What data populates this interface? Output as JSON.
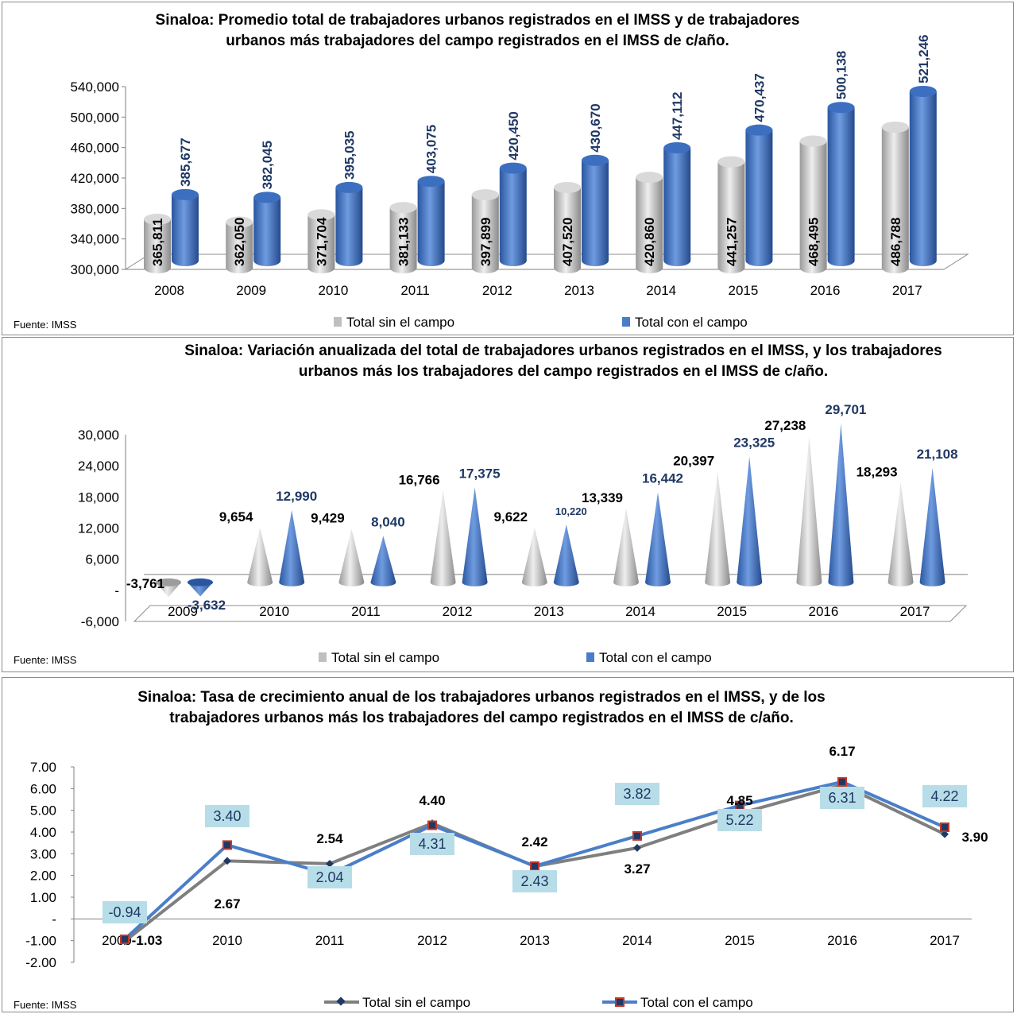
{
  "chart_data": [
    {
      "type": "bar",
      "title_lines": [
        "Sinaloa: Promedio total de trabajadores urbanos registrados en el IMSS y de trabajadores",
        "urbanos más trabajadores del campo registrados en el IMSS de c/año."
      ],
      "categories": [
        "2008",
        "2009",
        "2010",
        "2011",
        "2012",
        "2013",
        "2014",
        "2015",
        "2016",
        "2017"
      ],
      "series": [
        {
          "name": "Total sin el campo",
          "values": [
            365811,
            362050,
            371704,
            381133,
            397899,
            407520,
            420860,
            441257,
            468495,
            486788
          ],
          "labels": [
            "365,811",
            "362,050",
            "371,704",
            "381,133",
            "397,899",
            "407,520",
            "420,860",
            "441,257",
            "468,495",
            "486,788"
          ]
        },
        {
          "name": "Total con el campo",
          "values": [
            385677,
            382045,
            395035,
            403075,
            420450,
            430670,
            447112,
            470437,
            500138,
            521246
          ],
          "labels": [
            "385,677",
            "382,045",
            "395,035",
            "403,075",
            "420,450",
            "430,670",
            "447,112",
            "470,437",
            "500,138",
            "521,246"
          ]
        }
      ],
      "ylim": [
        300000,
        540000
      ],
      "ytick_labels": [
        "540,000",
        "500,000",
        "460,000",
        "420,000",
        "380,000",
        "340,000",
        "300,000"
      ],
      "source": "Fuente: IMSS",
      "legend": "bottom"
    },
    {
      "type": "bar",
      "title_lines": [
        "Sinaloa: Variación anualizada del total de trabajadores urbanos registrados en el IMSS, y los trabajadores",
        "urbanos más los trabajadores del campo registrados en el IMSS de c/año."
      ],
      "categories": [
        "2009",
        "2010",
        "2011",
        "2012",
        "2013",
        "2014",
        "2015",
        "2016",
        "2017"
      ],
      "series": [
        {
          "name": "Total sin el campo",
          "values": [
            -3761,
            9654,
            9429,
            16766,
            9622,
            13339,
            20397,
            27238,
            18293
          ],
          "labels": [
            "-3,761",
            "9,654",
            "9,429",
            "16,766",
            "9,622",
            "13,339",
            "20,397",
            "27,238",
            "18,293"
          ]
        },
        {
          "name": "Total con el campo",
          "values": [
            -3632,
            12990,
            8040,
            17375,
            10220,
            16442,
            23325,
            29701,
            21108
          ],
          "labels": [
            "-3,632",
            "12,990",
            "8,040",
            "17,375",
            "10,220",
            "16,442",
            "23,325",
            "29,701",
            "21,108"
          ]
        }
      ],
      "ylim": [
        -6000,
        30000
      ],
      "ytick_labels": [
        "30,000",
        "24,000",
        "18,000",
        "12,000",
        "6,000",
        "-",
        "-6,000"
      ],
      "source": "Fuente: IMSS",
      "legend": "bottom"
    },
    {
      "type": "line",
      "title_lines": [
        "Sinaloa: Tasa de crecimiento anual de los trabajadores urbanos registrados en el IMSS, y de los",
        "trabajadores urbanos más los trabajadores del campo registrados en el IMSS de c/año."
      ],
      "categories": [
        "2009",
        "2010",
        "2011",
        "2012",
        "2013",
        "2014",
        "2015",
        "2016",
        "2017"
      ],
      "series": [
        {
          "name": "Total sin el campo",
          "values": [
            -1.03,
            2.67,
            2.54,
            4.4,
            2.42,
            3.27,
            4.85,
            6.17,
            3.9
          ],
          "labels": [
            "-1.03",
            "2.67",
            "2.54",
            "4.40",
            "2.42",
            "3.27",
            "4.85",
            "6.17",
            "3.90"
          ]
        },
        {
          "name": "Total con el campo",
          "values": [
            -0.94,
            3.4,
            2.04,
            4.31,
            2.43,
            3.82,
            5.22,
            6.31,
            4.22
          ],
          "labels": [
            "-0.94",
            "3.40",
            "2.04",
            "4.31",
            "2.43",
            "3.82",
            "5.22",
            "6.31",
            "4.22"
          ]
        }
      ],
      "ylim": [
        -2,
        7
      ],
      "ytick_labels": [
        "7.00",
        "6.00",
        "5.00",
        "4.00",
        "3.00",
        "2.00",
        "1.00",
        "-",
        "-1.00",
        "-2.00"
      ],
      "source": "Fuente: IMSS",
      "legend": "bottom"
    }
  ],
  "colors": {
    "gray": "#bfbfbf",
    "blue": "#4a7cc9",
    "label_blue": "#1f3864",
    "line_gray": "#7f7f7f",
    "line_blue": "#4a7ec9",
    "box": "#b7dde8",
    "marker_red": "#c0392b"
  }
}
